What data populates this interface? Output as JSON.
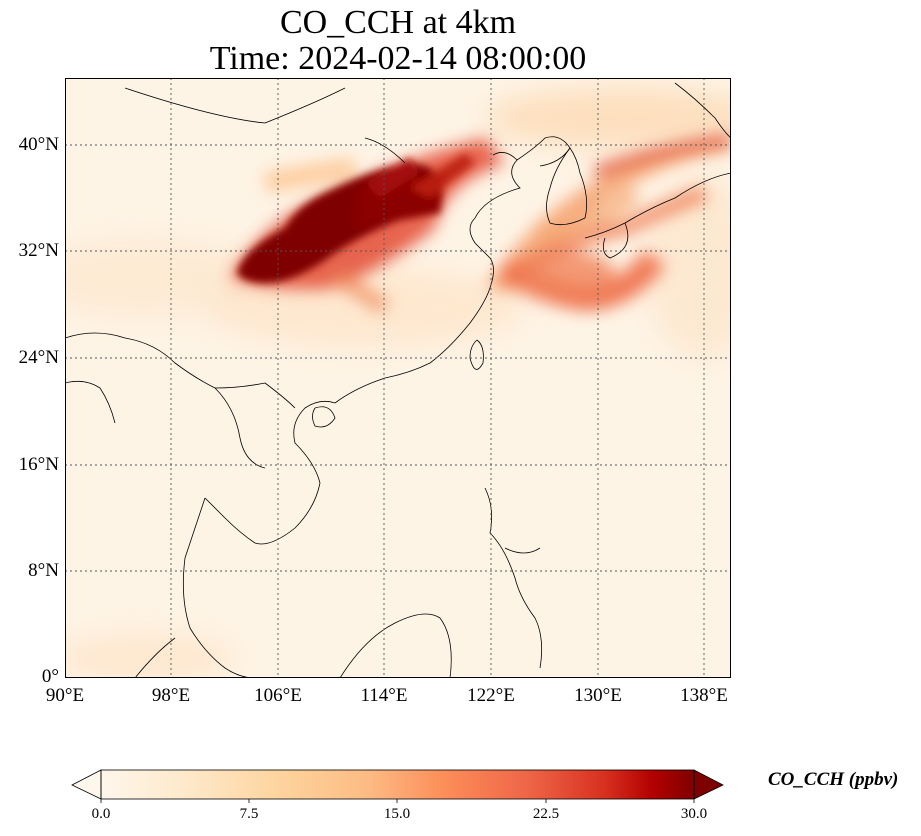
{
  "title": {
    "line1": "CO_CCH at 4km",
    "line2": "Time: 2024-02-14 08:00:00"
  },
  "axes": {
    "lon_ticks": [
      "90°E",
      "98°E",
      "106°E",
      "114°E",
      "122°E",
      "130°E",
      "138°E"
    ],
    "lat_ticks": [
      "0°",
      "8°N",
      "16°N",
      "24°N",
      "32°N",
      "40°N"
    ],
    "lon_values": [
      90,
      98,
      106,
      114,
      122,
      130,
      138
    ],
    "lat_values": [
      0,
      8,
      16,
      24,
      32,
      40
    ],
    "lon_range": [
      90,
      140
    ],
    "lat_range": [
      0,
      45
    ],
    "gridlines": "dotted"
  },
  "colorbar": {
    "label": "CO_CCH (ppbv)",
    "tick_labels": [
      "0.0",
      "7.5",
      "15.0",
      "22.5",
      "30.0"
    ],
    "range": [
      0,
      30
    ],
    "colormap": "OrRd",
    "extend": "both"
  },
  "plume": {
    "field": "CO_CCH",
    "level": "4km",
    "units": "ppbv",
    "core_region": "central China (~103–118°E, 30–37°N)",
    "core_value_range": [
      25,
      30
    ],
    "secondary_region": "Korea–Japan band (~125–140°E, 30–41°N)",
    "secondary_value_range": [
      10,
      18
    ]
  },
  "colors": {
    "low": "#fff7ec",
    "high": "#7f0000"
  }
}
